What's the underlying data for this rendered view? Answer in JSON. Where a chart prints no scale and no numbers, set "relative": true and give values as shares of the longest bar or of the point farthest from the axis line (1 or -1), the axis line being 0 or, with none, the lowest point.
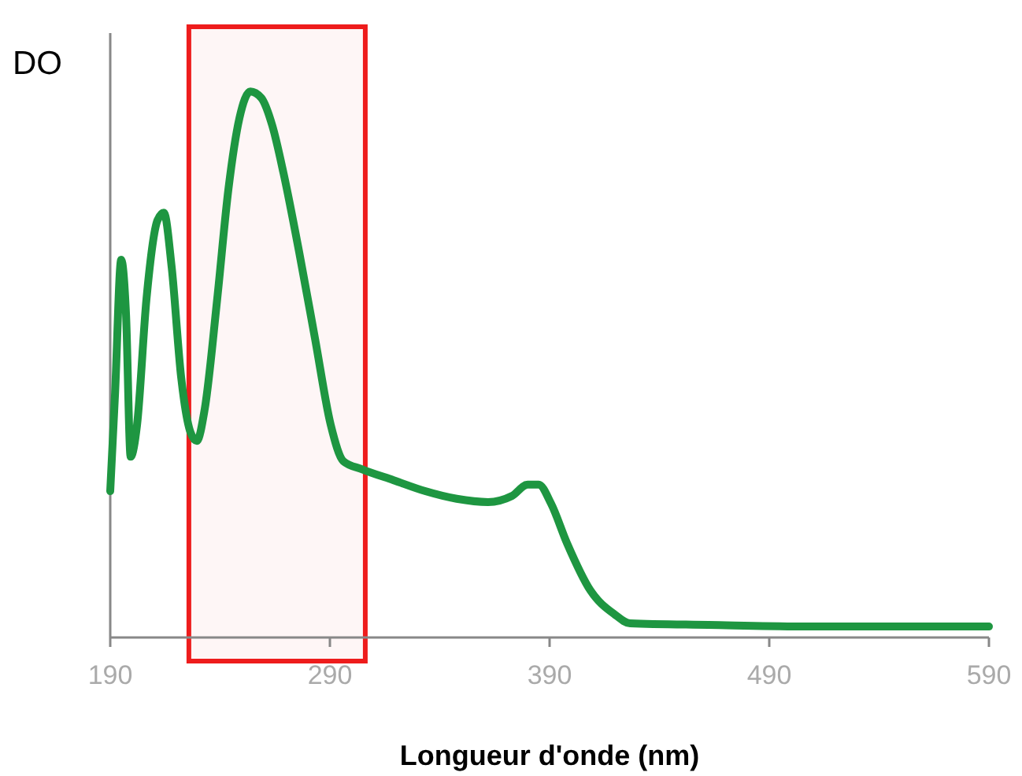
{
  "chart_data": {
    "type": "line",
    "ylabel": "DO",
    "xlabel": "Longueur d'onde (nm)",
    "relative": true,
    "xlim": [
      190,
      590
    ],
    "xticks": [
      190,
      290,
      390,
      490,
      590
    ],
    "grid": false,
    "marker": "none",
    "line_style": "solid",
    "series": [
      {
        "color": "#1e9641",
        "x": [
          190,
          192.2,
          195,
          197.2,
          199.3,
          202.2,
          206.5,
          211.5,
          214.4,
          218,
          222.3,
          226.6,
          229.4,
          233,
          238.7,
          243.8,
          248.8,
          253.8,
          258.8,
          263.8,
          268.9,
          276,
          283.2,
          290.4,
          296.1,
          304.7,
          319,
          333.4,
          347.7,
          362,
          372.8,
          380,
          385,
          390.7,
          397.9,
          408.6,
          419.4,
          426.6,
          462.4,
          512.6,
          590
        ],
        "values": [
          0.268,
          0.447,
          0.692,
          0.591,
          0.331,
          0.389,
          0.62,
          0.764,
          0.778,
          0.677,
          0.476,
          0.375,
          0.36,
          0.418,
          0.62,
          0.821,
          0.951,
          1,
          0.988,
          0.937,
          0.85,
          0.706,
          0.548,
          0.389,
          0.323,
          0.308,
          0.288,
          0.268,
          0.254,
          0.248,
          0.259,
          0.28,
          0.28,
          0.245,
          0.173,
          0.086,
          0.043,
          0.026,
          0.023,
          0.02,
          0.02
        ]
      }
    ],
    "bands": [
      {
        "axis": "x",
        "from": 225.8,
        "to": 306.1,
        "color": "#ee1c1c"
      }
    ]
  }
}
